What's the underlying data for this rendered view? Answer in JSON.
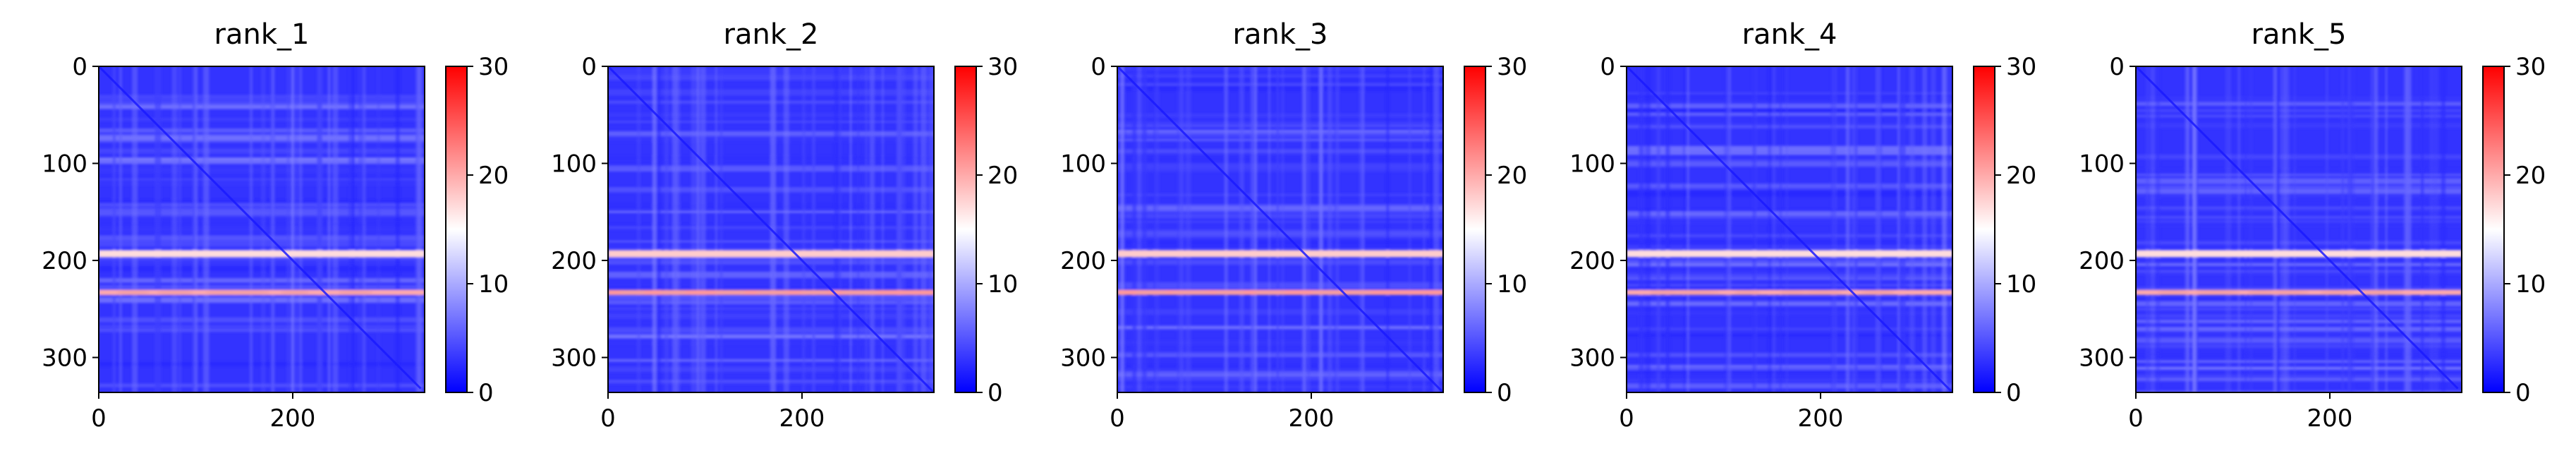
{
  "chart_data": {
    "type": "heatmap",
    "colormap": "bwr",
    "colormap_colors": [
      "#0000ff",
      "#ffffff",
      "#ff0000"
    ],
    "panels": [
      {
        "title": "rank_1",
        "matrix_size": 336,
        "vmin": 0,
        "vmax": 30,
        "diagonal_end": 332,
        "bright_rows": [
          {
            "y": 193,
            "value": 17
          },
          {
            "y": 233,
            "value": 20
          }
        ]
      },
      {
        "title": "rank_2",
        "matrix_size": 336,
        "vmin": 0,
        "vmax": 30,
        "diagonal_end": 336,
        "bright_rows": [
          {
            "y": 193,
            "value": 18
          },
          {
            "y": 233,
            "value": 21
          }
        ]
      },
      {
        "title": "rank_3",
        "matrix_size": 336,
        "vmin": 0,
        "vmax": 30,
        "diagonal_end": 336,
        "bright_rows": [
          {
            "y": 193,
            "value": 18
          },
          {
            "y": 233,
            "value": 21
          }
        ]
      },
      {
        "title": "rank_4",
        "matrix_size": 336,
        "vmin": 0,
        "vmax": 30,
        "diagonal_end": 336,
        "bright_rows": [
          {
            "y": 193,
            "value": 17
          },
          {
            "y": 233,
            "value": 20
          }
        ]
      },
      {
        "title": "rank_5",
        "matrix_size": 336,
        "vmin": 0,
        "vmax": 30,
        "diagonal_end": 332,
        "bright_rows": [
          {
            "y": 193,
            "value": 17
          },
          {
            "y": 233,
            "value": 20
          }
        ]
      }
    ],
    "x_ticks": [
      0,
      200
    ],
    "y_ticks": [
      0,
      100,
      200,
      300
    ],
    "colorbar_ticks": [
      0,
      10,
      20,
      30
    ],
    "xlabel": "",
    "ylabel": "",
    "grid": false
  }
}
